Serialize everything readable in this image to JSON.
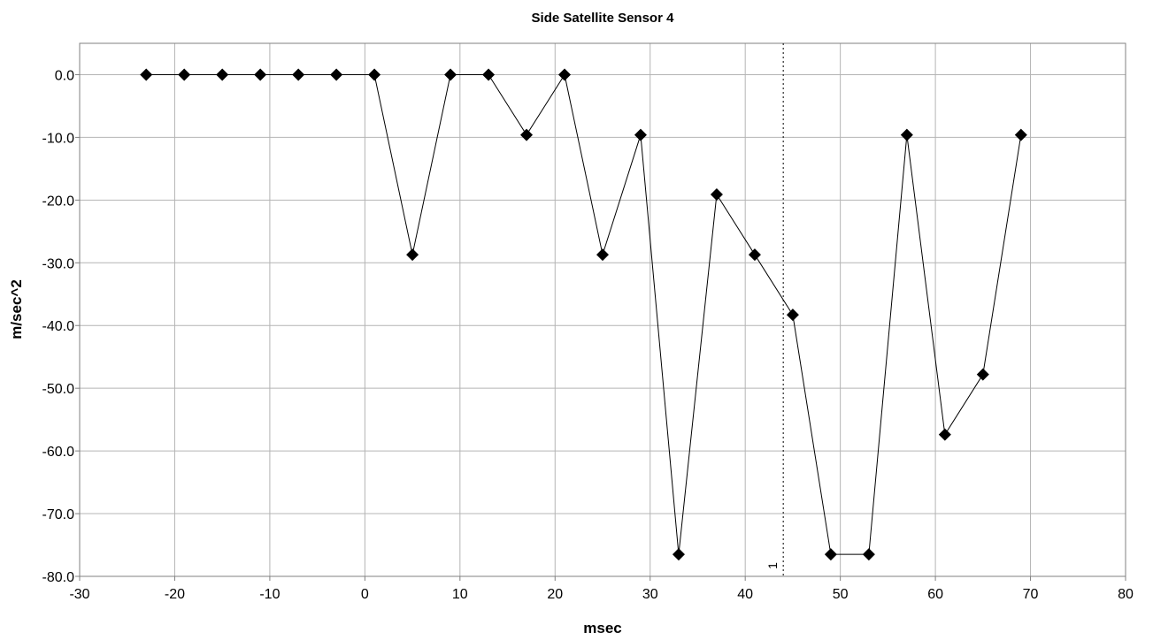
{
  "chart_data": {
    "type": "line",
    "title": "Side Satellite Sensor 4",
    "xlabel": "msec",
    "ylabel": "m/sec^2",
    "xlim": [
      -30,
      80
    ],
    "ylim": [
      -80,
      5
    ],
    "x_ticks": [
      -30,
      -20,
      -10,
      0,
      10,
      20,
      30,
      40,
      50,
      60,
      70,
      80
    ],
    "x_tick_labels": [
      "-30",
      "-20",
      "-10",
      "0",
      "10",
      "20",
      "30",
      "40",
      "50",
      "60",
      "70",
      "80"
    ],
    "y_ticks": [
      0,
      -10,
      -20,
      -30,
      -40,
      -50,
      -60,
      -70,
      -80
    ],
    "y_tick_labels": [
      "0.0",
      "-10.0",
      "-20.0",
      "-30.0",
      "-40.0",
      "-50.0",
      "-60.0",
      "-70.0",
      "-80.0"
    ],
    "grid": true,
    "legend": "none",
    "series": [
      {
        "marker": "diamond",
        "color": "#000000",
        "x": [
          -23,
          -19,
          -15,
          -11,
          -7,
          -3,
          1,
          5,
          9,
          13,
          17,
          21,
          25,
          29,
          33,
          37,
          41,
          45,
          49,
          53,
          57,
          61,
          65,
          69
        ],
        "y": [
          0,
          0,
          0,
          0,
          0,
          0,
          0,
          -28.7,
          0,
          0,
          -9.6,
          0,
          -28.7,
          -9.6,
          -76.5,
          -19.1,
          -28.7,
          -38.3,
          -76.5,
          -76.5,
          -9.6,
          -57.4,
          -47.8,
          -9.6
        ]
      }
    ],
    "annotations": [
      {
        "type": "vertical-dotted-line",
        "x": 44,
        "label": "1"
      }
    ]
  }
}
